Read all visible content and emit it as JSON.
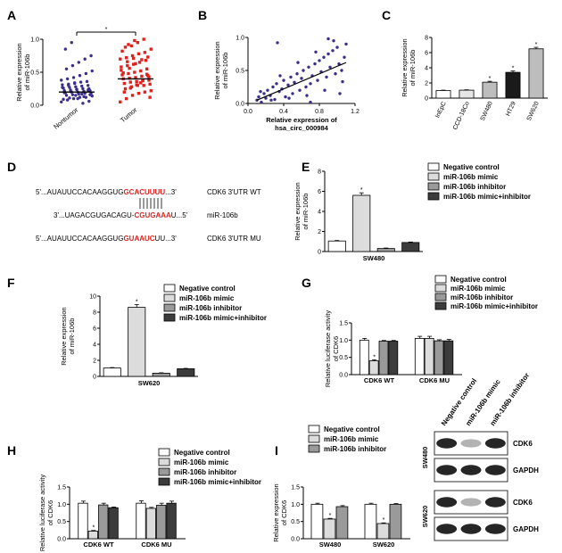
{
  "panels": {
    "A": "A",
    "B": "B",
    "C": "C",
    "D": "D",
    "E": "E",
    "F": "F",
    "G": "G",
    "H": "H",
    "I": "I"
  },
  "chart_data": [
    {
      "id": "A",
      "type": "scatter",
      "ylabel": "Relative expression\nof miR-106b",
      "categories": [
        "Nontumor",
        "Tumor"
      ],
      "ylim": [
        0,
        1.0
      ],
      "yticks": [
        "0.0",
        "0.5",
        "1.0"
      ],
      "means": [
        0.2,
        0.4
      ],
      "colors": [
        "#3a2f8a",
        "#e0221e"
      ],
      "points": [
        [
          0.05,
          0.08,
          0.1,
          0.12,
          0.12,
          0.14,
          0.15,
          0.16,
          0.17,
          0.18,
          0.18,
          0.19,
          0.2,
          0.2,
          0.21,
          0.22,
          0.22,
          0.23,
          0.24,
          0.25,
          0.25,
          0.26,
          0.27,
          0.28,
          0.29,
          0.3,
          0.31,
          0.32,
          0.33,
          0.35,
          0.36,
          0.38,
          0.4,
          0.42,
          0.45,
          0.48,
          0.52,
          0.55,
          0.6,
          0.65,
          0.7,
          0.75,
          0.85,
          0.95,
          0.1,
          0.13,
          0.16,
          0.19,
          0.21,
          0.24,
          0.03,
          0.06,
          0.09,
          0.11,
          0.15,
          0.17,
          0.23,
          0.27,
          0.3,
          0.34
        ],
        [
          0.05,
          0.1,
          0.15,
          0.18,
          0.2,
          0.22,
          0.25,
          0.28,
          0.3,
          0.3,
          0.32,
          0.33,
          0.35,
          0.36,
          0.38,
          0.38,
          0.4,
          0.41,
          0.42,
          0.44,
          0.45,
          0.46,
          0.48,
          0.5,
          0.52,
          0.55,
          0.58,
          0.6,
          0.62,
          0.65,
          0.68,
          0.7,
          0.72,
          0.75,
          0.78,
          0.8,
          0.85,
          0.88,
          0.9,
          0.95,
          1.0,
          0.12,
          0.2,
          0.26,
          0.31,
          0.37,
          0.43,
          0.49,
          0.56,
          0.63,
          0.69,
          0.73,
          0.82,
          0.92,
          0.98,
          0.34,
          0.47,
          0.53,
          0.66,
          0.71
        ]
      ],
      "significance": "*"
    },
    {
      "id": "B",
      "type": "scatter",
      "xlabel": "Relative expression of\nhsa_circ_000984",
      "ylabel": "Relative expression\nof miR-106b",
      "xlim": [
        0,
        1.2
      ],
      "ylim": [
        0,
        1.0
      ],
      "xticks": [
        "0.0",
        "0.4",
        "0.8",
        "1.2"
      ],
      "yticks": [
        "0.0",
        "0.5",
        "1.0"
      ],
      "color": "#3a2f8a",
      "fit": [
        [
          0.1,
          0.05
        ],
        [
          1.1,
          0.62
        ]
      ],
      "x": [
        0.1,
        0.12,
        0.15,
        0.18,
        0.2,
        0.22,
        0.25,
        0.28,
        0.3,
        0.32,
        0.35,
        0.38,
        0.4,
        0.42,
        0.45,
        0.48,
        0.5,
        0.52,
        0.55,
        0.58,
        0.6,
        0.62,
        0.65,
        0.68,
        0.7,
        0.72,
        0.75,
        0.78,
        0.8,
        0.82,
        0.85,
        0.88,
        0.9,
        0.92,
        0.95,
        0.98,
        1.0,
        1.02,
        1.05,
        1.08,
        1.1,
        0.14,
        0.26,
        0.36,
        0.46,
        0.56,
        0.66,
        0.76,
        0.86,
        0.96,
        1.06,
        0.33,
        0.7,
        0.9,
        1.03
      ],
      "y": [
        0.05,
        0.1,
        0.02,
        0.15,
        0.08,
        0.2,
        0.12,
        0.25,
        0.06,
        0.3,
        0.18,
        0.22,
        0.35,
        0.1,
        0.28,
        0.4,
        0.15,
        0.32,
        0.45,
        0.2,
        0.38,
        0.5,
        0.25,
        0.55,
        0.3,
        0.42,
        0.6,
        0.35,
        0.65,
        0.48,
        0.7,
        0.4,
        0.75,
        0.55,
        0.8,
        0.45,
        0.85,
        0.6,
        0.5,
        0.7,
        0.9,
        0.18,
        0.05,
        0.42,
        0.08,
        0.62,
        0.12,
        0.78,
        0.2,
        0.95,
        0.33,
        0.92,
        0.02,
        0.98,
        0.15
      ]
    },
    {
      "id": "C",
      "type": "bar",
      "ylabel": "Relative expression\nof miR-106b",
      "categories": [
        "InEpC",
        "CCD-18Co",
        "SW480",
        "HT29",
        "SW620"
      ],
      "values": [
        1.0,
        1.05,
        2.1,
        3.4,
        6.5
      ],
      "errors": [
        0.05,
        0.05,
        0.12,
        0.18,
        0.2
      ],
      "fills": [
        "#ffffff",
        "#e6e6e6",
        "#bdbdbd",
        "#1a1a1a",
        "#bdbdbd"
      ],
      "significance": [
        "",
        "",
        "*",
        "*",
        "*"
      ],
      "ylim": [
        0,
        8
      ],
      "yticks": [
        "0",
        "2",
        "4",
        "6",
        "8"
      ]
    },
    {
      "id": "E",
      "type": "bar",
      "ylabel": "Relative expression\nof miR-106b",
      "xlabel": "SW480",
      "categories": [
        "Negative control",
        "miR-106b mimic",
        "miR-106b inhibitor",
        "miR-106b mimic+inhibitor"
      ],
      "values": [
        1.05,
        5.6,
        0.3,
        0.9
      ],
      "errors": [
        0.05,
        0.25,
        0.05,
        0.05
      ],
      "significance": [
        "",
        "*",
        "",
        ""
      ],
      "ylim": [
        0,
        8
      ],
      "yticks": [
        "0",
        "2",
        "4",
        "6",
        "8"
      ]
    },
    {
      "id": "F",
      "type": "bar",
      "ylabel": "Relative expression\nof miR-106b",
      "xlabel": "SW620",
      "categories": [
        "Negative control",
        "miR-106b mimic",
        "miR-106b inhibitor",
        "miR-106b mimic+inhibitor"
      ],
      "values": [
        1.05,
        8.6,
        0.4,
        0.95
      ],
      "errors": [
        0.05,
        0.35,
        0.05,
        0.05
      ],
      "significance": [
        "",
        "*",
        "",
        ""
      ],
      "ylim": [
        0,
        10
      ],
      "yticks": [
        "0",
        "2",
        "4",
        "6",
        "8",
        "10"
      ]
    },
    {
      "id": "G",
      "type": "bar",
      "ylabel": "Relative luciferase activity\nof CDK6",
      "categories": [
        "CDK6 WT",
        "CDK6 MU"
      ],
      "series": [
        {
          "name": "Negative control",
          "values": [
            1.0,
            1.05
          ],
          "errors": [
            0.05,
            0.06
          ]
        },
        {
          "name": "miR-106b mimic",
          "values": [
            0.4,
            1.05
          ],
          "errors": [
            0.03,
            0.06
          ]
        },
        {
          "name": "miR-106b inhibitor",
          "values": [
            0.97,
            0.98
          ],
          "errors": [
            0.02,
            0.03
          ]
        },
        {
          "name": "miR-106b mimic+inhibitor",
          "values": [
            0.97,
            0.98
          ],
          "errors": [
            0.02,
            0.04
          ]
        }
      ],
      "significance": [
        [
          "",
          "*",
          "",
          ""
        ],
        [
          "",
          "",
          "",
          ""
        ]
      ],
      "ylim": [
        0,
        1.5
      ],
      "yticks": [
        "0.0",
        "0.5",
        "1.0",
        "1.5"
      ]
    },
    {
      "id": "H",
      "type": "bar",
      "ylabel": "Relative luciferase activity\nof CDK6",
      "categories": [
        "CDK6 WT",
        "CDK6 MU"
      ],
      "series": [
        {
          "name": "Negative control",
          "values": [
            1.03,
            1.03
          ],
          "errors": [
            0.06,
            0.07
          ]
        },
        {
          "name": "miR-106b mimic",
          "values": [
            0.22,
            0.88
          ],
          "errors": [
            0.02,
            0.03
          ]
        },
        {
          "name": "miR-106b inhibitor",
          "values": [
            0.98,
            0.97
          ],
          "errors": [
            0.05,
            0.06
          ]
        },
        {
          "name": "miR-106b mimic+inhibitor",
          "values": [
            0.9,
            1.03
          ],
          "errors": [
            0.02,
            0.06
          ]
        }
      ],
      "significance": [
        [
          "",
          "*",
          "",
          ""
        ],
        [
          "",
          "",
          "",
          ""
        ]
      ],
      "ylim": [
        0,
        1.5
      ],
      "yticks": [
        "0.0",
        "0.5",
        "1.0",
        "1.5"
      ]
    },
    {
      "id": "I",
      "type": "bar",
      "ylabel": "Relative expression\nof CDK6",
      "categories": [
        "SW480",
        "SW620"
      ],
      "series": [
        {
          "name": "Negative control",
          "values": [
            1.0,
            1.0
          ],
          "errors": [
            0.03,
            0.03
          ]
        },
        {
          "name": "miR-106b mimic",
          "values": [
            0.57,
            0.44
          ],
          "errors": [
            0.02,
            0.02
          ]
        },
        {
          "name": "miR-106b inhibitor",
          "values": [
            0.93,
            1.0
          ],
          "errors": [
            0.03,
            0.02
          ]
        }
      ],
      "significance": [
        [
          "",
          "*",
          ""
        ],
        [
          "",
          "*",
          ""
        ]
      ],
      "ylim": [
        0,
        1.5
      ],
      "yticks": [
        "0.0",
        "0.5",
        "1.0",
        "1.5"
      ]
    }
  ],
  "sequences": {
    "wt_prefix": "5'...AUAUUCCACAAGGUG",
    "wt_site": "GCACUUUU",
    "wt_suffix": "...3'",
    "wt_label": "CDK6 3'UTR WT",
    "mir_prefix": "3'...UAGACGUGACAGU-",
    "mir_site": "CGUGAAA",
    "mir_suffix": "U...5'",
    "mir_label": "miR-106b",
    "mu_prefix": "5'...AUAUUCCACAAGGUG",
    "mu_site": "GUAAUC",
    "mu_suffix": "UU...3'",
    "mu_label": "CDK6 3'UTR MU"
  },
  "western": {
    "columns": [
      "Negative control",
      "miR-106b mimic",
      "miR-106b inhibitor"
    ],
    "groups": [
      {
        "cell": "SW480",
        "rows": [
          {
            "label": "CDK6",
            "intensity": [
              0.85,
              0.3,
              0.85
            ]
          },
          {
            "label": "GAPDH",
            "intensity": [
              0.85,
              0.85,
              0.85
            ]
          }
        ]
      },
      {
        "cell": "SW620",
        "rows": [
          {
            "label": "CDK6",
            "intensity": [
              0.85,
              0.3,
              0.85
            ]
          },
          {
            "label": "GAPDH",
            "intensity": [
              0.85,
              0.85,
              0.85
            ]
          }
        ]
      }
    ]
  },
  "legend_fills": [
    "#ffffff",
    "#dcdcdc",
    "#9a9a9a",
    "#3c3c3c"
  ]
}
